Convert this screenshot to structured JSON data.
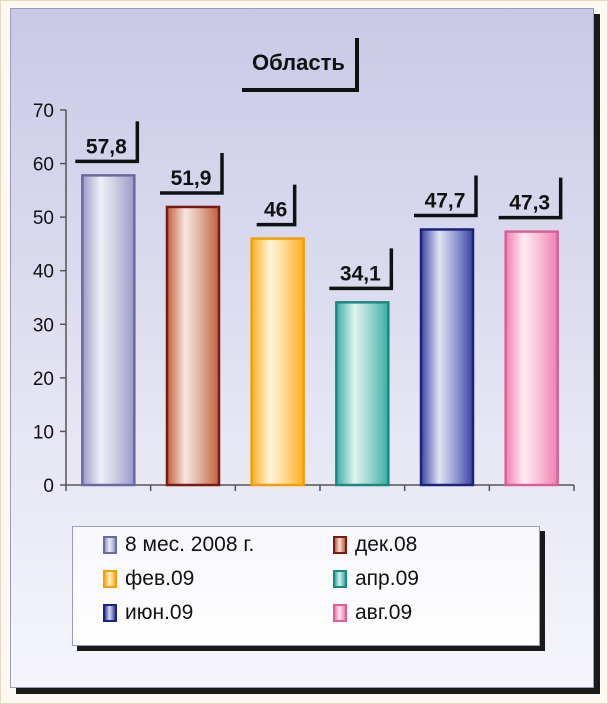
{
  "chart_data": {
    "type": "bar",
    "title": "Область",
    "categories": [
      "8 мес. 2008 г.",
      "дек.08",
      "фев.09",
      "апр.09",
      "июн.09",
      "авг.09"
    ],
    "values": [
      57.8,
      51.9,
      46,
      34.1,
      47.7,
      47.3
    ],
    "value_labels": [
      "57,8",
      "51,9",
      "46",
      "34,1",
      "47,7",
      "47,3"
    ],
    "yticks": [
      "0",
      "10",
      "20",
      "30",
      "40",
      "50",
      "60",
      "70"
    ],
    "ylim": [
      0,
      70
    ],
    "xlabel": "",
    "ylabel": "",
    "legend": "bottom",
    "grid": false,
    "colors": [
      "#9a9ac8",
      "#c0603a",
      "#ffb020",
      "#3aaea4",
      "#3a44a8",
      "#f080b0"
    ],
    "border_colors": [
      "#6a6aa0",
      "#7a1a14",
      "#f0a000",
      "#1a8a80",
      "#1a2478",
      "#d86098"
    ]
  }
}
